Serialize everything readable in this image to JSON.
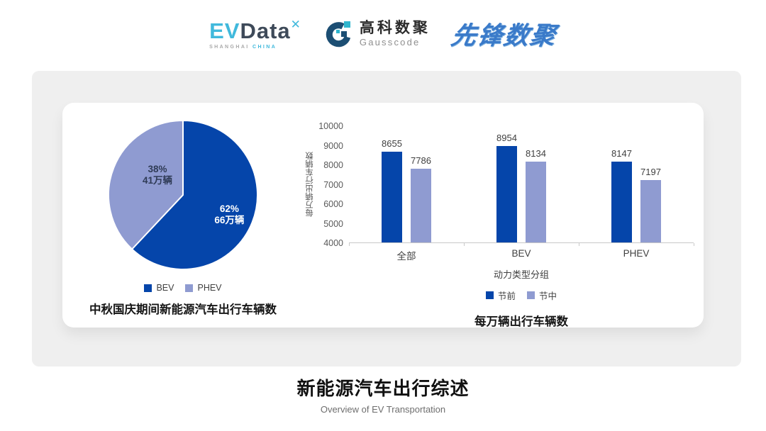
{
  "header": {
    "evdata": {
      "ev": "EV",
      "data": "Data",
      "mark": "✕",
      "sub_left": "SHANGHAI",
      "sub_right": "CHINA"
    },
    "gausscode": {
      "cn": "高科数聚",
      "en": "Gausscode"
    },
    "pioneer": {
      "text": "先锋数聚"
    }
  },
  "colors": {
    "primary_blue": "#0545AA",
    "periwinkle": "#8F9BD1",
    "panel_gray": "#EFEFEF",
    "axis_text": "#595959",
    "label_text": "#404040"
  },
  "chart_data": [
    {
      "type": "pie",
      "title": "中秋国庆期间新能源汽车出行车辆数",
      "slices": [
        {
          "label": "BEV",
          "percent": 62,
          "lines": [
            "62%",
            "66万辆"
          ],
          "color": "#0545AA",
          "text_color": "#FFFFFF"
        },
        {
          "label": "PHEV",
          "percent": 38,
          "lines": [
            "38%",
            "41万辆"
          ],
          "color": "#8F9BD1",
          "text_color": "#2F3B56"
        }
      ],
      "legend": [
        "BEV",
        "PHEV"
      ],
      "legend_position": "bottom"
    },
    {
      "type": "bar",
      "title": "每万辆出行车辆数",
      "categories": [
        "全部",
        "BEV",
        "PHEV"
      ],
      "series": [
        {
          "name": "节前",
          "values": [
            8655,
            8954,
            8147
          ],
          "color": "#0545AA"
        },
        {
          "name": "节中",
          "values": [
            7786,
            8134,
            7197
          ],
          "color": "#8F9BD1"
        }
      ],
      "ylabel": "每万辆出行车辆数",
      "xlabel": "动力类型分组",
      "ylim": [
        4000,
        10000
      ],
      "yticks": [
        4000,
        5000,
        6000,
        7000,
        8000,
        9000,
        10000
      ],
      "grid": false,
      "legend_position": "bottom"
    }
  ],
  "footer": {
    "title": "新能源汽车出行综述",
    "subtitle": "Overview of EV Transportation"
  }
}
